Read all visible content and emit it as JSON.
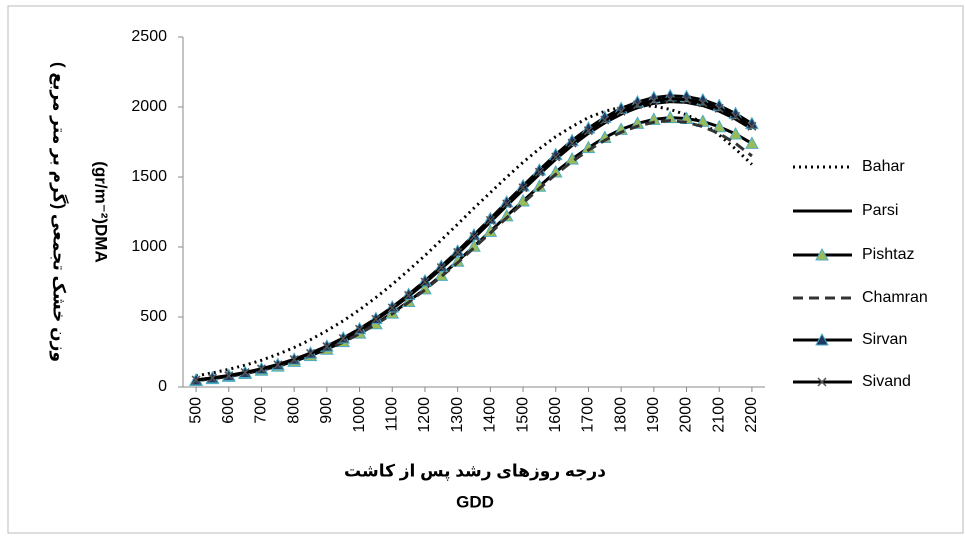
{
  "chart_data": {
    "type": "line",
    "x_label_fa": "درجه روزهای رشد پس از کاشت",
    "x_label": "GDD",
    "y_label_fa": "وزن خشک تجمعی (گرم بر متر مربع )",
    "y_label": "(gr/m⁻²)DMA",
    "x": [
      500,
      550,
      600,
      650,
      700,
      750,
      800,
      850,
      900,
      950,
      1000,
      1050,
      1100,
      1150,
      1200,
      1250,
      1300,
      1350,
      1400,
      1450,
      1500,
      1550,
      1600,
      1650,
      1700,
      1750,
      1800,
      1850,
      1900,
      1950,
      2000,
      2050,
      2100,
      2150,
      2200
    ],
    "xlim": [
      460,
      2240
    ],
    "xticks": [
      500,
      600,
      700,
      800,
      900,
      1000,
      1100,
      1200,
      1300,
      1400,
      1500,
      1600,
      1700,
      1800,
      1900,
      2000,
      2100,
      2200
    ],
    "ylim": [
      0,
      2500
    ],
    "yticks": [
      0,
      500,
      1000,
      1500,
      2000,
      2500
    ],
    "series": [
      {
        "name": "Bahar",
        "color": "#000000",
        "line_style": "dotted",
        "values": [
          79,
          101,
          126,
          156,
          191,
          234,
          282,
          338,
          402,
          473,
          552,
          639,
          733,
          834,
          939,
          1050,
          1163,
          1278,
          1389,
          1499,
          1605,
          1702,
          1788,
          1860,
          1925,
          1969,
          1999,
          2011,
          2006,
          1983,
          1944,
          1889,
          1800,
          1700,
          1590
        ]
      },
      {
        "name": "Parsi",
        "color": "#000000",
        "line_style": "solid",
        "values": [
          49,
          64,
          80,
          102,
          127,
          158,
          194,
          237,
          286,
          343,
          408,
          479,
          560,
          648,
          743,
          845,
          952,
          1064,
          1178,
          1295,
          1408,
          1519,
          1627,
          1725,
          1812,
          1887,
          1949,
          1995,
          2026,
          2038,
          2033,
          2010,
          1970,
          1914,
          1843
        ]
      },
      {
        "name": "Pishtaz",
        "color": "#000000",
        "line_style": "solid",
        "marker": "triangle",
        "marker_color": "#9bbb59",
        "values": [
          46,
          60,
          76,
          96,
          120,
          149,
          183,
          224,
          270,
          324,
          385,
          452,
          528,
          611,
          701,
          797,
          898,
          1005,
          1112,
          1222,
          1329,
          1434,
          1536,
          1628,
          1710,
          1782,
          1840,
          1883,
          1912,
          1924,
          1918,
          1897,
          1859,
          1807,
          1740
        ]
      },
      {
        "name": "Chamran",
        "color": "#333333",
        "line_style": "dashed",
        "values": [
          46,
          59,
          75,
          95,
          119,
          147,
          181,
          221,
          267,
          320,
          381,
          447,
          522,
          605,
          694,
          789,
          888,
          994,
          1100,
          1209,
          1315,
          1418,
          1519,
          1610,
          1692,
          1762,
          1820,
          1863,
          1891,
          1903,
          1890,
          1860,
          1810,
          1740,
          1650
        ]
      },
      {
        "name": "Sirvan",
        "color": "#000000",
        "line_style": "solid",
        "marker": "triangle",
        "marker_color": "#1f3864",
        "values": [
          50,
          65,
          82,
          104,
          130,
          161,
          198,
          242,
          292,
          350,
          416,
          489,
          571,
          661,
          758,
          862,
          971,
          1086,
          1202,
          1321,
          1437,
          1550,
          1660,
          1760,
          1849,
          1926,
          1989,
          2036,
          2067,
          2080,
          2074,
          2051,
          2010,
          1953,
          1881
        ]
      },
      {
        "name": "Sivand",
        "color": "#000000",
        "line_style": "solid",
        "marker": "x",
        "marker_color": "#555555",
        "values": [
          50,
          64,
          81,
          103,
          129,
          159,
          196,
          240,
          289,
          347,
          412,
          484,
          565,
          654,
          750,
          853,
          961,
          1075,
          1190,
          1308,
          1423,
          1535,
          1643,
          1742,
          1831,
          1907,
          1969,
          2016,
          2046,
          2059,
          2053,
          2030,
          1990,
          1933,
          1862
        ]
      }
    ]
  }
}
